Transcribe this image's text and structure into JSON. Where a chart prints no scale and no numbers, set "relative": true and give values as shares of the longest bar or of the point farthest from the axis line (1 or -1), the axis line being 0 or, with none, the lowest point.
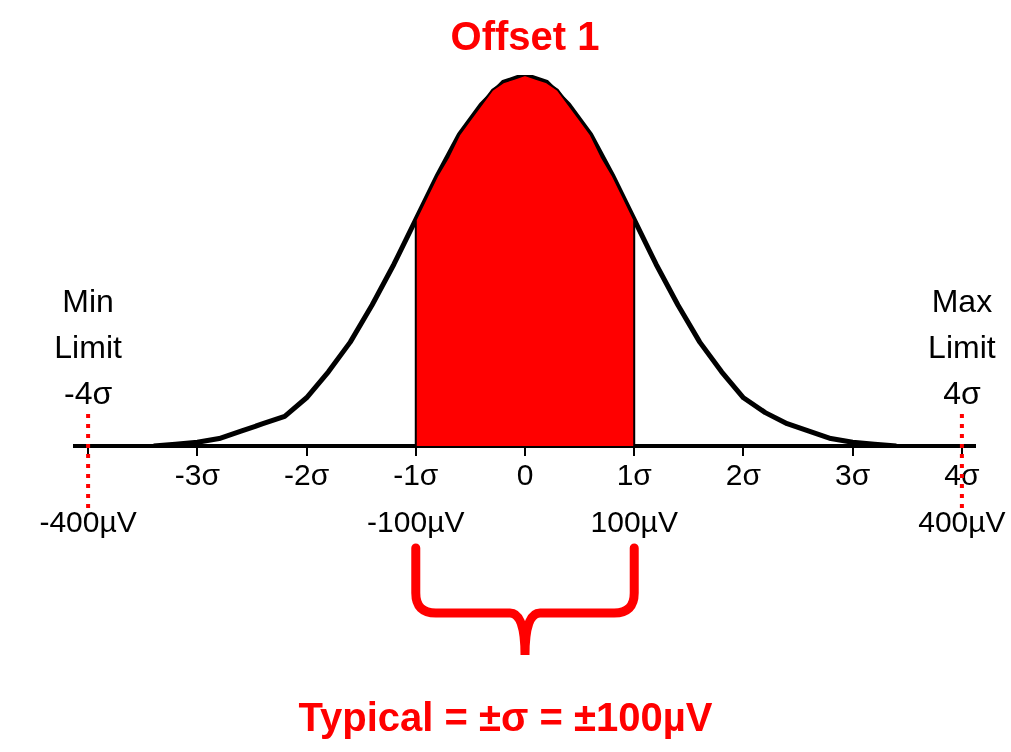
{
  "chart_data": {
    "type": "line",
    "title": "Offset 1",
    "relative": true,
    "grid": false,
    "legend": false,
    "xlim": [
      -4.12,
      4.12
    ],
    "xticks": [
      {
        "value": -4,
        "label": null
      },
      {
        "value": -3,
        "label": "-3σ"
      },
      {
        "value": -2,
        "label": "-2σ"
      },
      {
        "value": -1,
        "label": "-1σ"
      },
      0,
      {
        "value": 1,
        "label": "1σ"
      },
      {
        "value": 2,
        "label": "2σ"
      },
      {
        "value": 3,
        "label": "3σ"
      },
      {
        "value": 4,
        "label": "4σ"
      }
    ],
    "x2lim": [
      -412,
      412
    ],
    "x2ticks": [
      {
        "value": -400,
        "label": "-400µV"
      },
      {
        "value": -100,
        "label": "-100µV"
      },
      {
        "value": 100,
        "label": "100µV"
      },
      {
        "value": 400,
        "label": "400µV"
      }
    ],
    "series": [
      {
        "type": "area",
        "color": "#ff0000",
        "x": [
          -1,
          -1,
          -0.9,
          -0.8,
          -0.7,
          -0.6,
          -0.5,
          -0.4,
          -0.3,
          -0.2,
          -0.1,
          0,
          0.1,
          0.2,
          0.3,
          0.4,
          0.5,
          0.6,
          0.7,
          0.8,
          0.9,
          1,
          1
        ],
        "values": [
          0,
          0.61,
          0.67,
          0.73,
          0.78,
          0.84,
          0.88,
          0.92,
          0.96,
          0.98,
          0.99,
          1,
          0.99,
          0.98,
          0.96,
          0.92,
          0.88,
          0.84,
          0.78,
          0.73,
          0.67,
          0.61,
          0
        ]
      },
      {
        "color": "#000000",
        "x": [
          -3.4,
          -3.2,
          -3.0,
          -2.8,
          -2.6,
          -2.4,
          -2.2,
          -2.0,
          -1.8,
          -1.6,
          -1.4,
          -1.2,
          -1.0,
          -0.8,
          -0.6,
          -0.4,
          -0.2,
          0,
          0.2,
          0.4,
          0.6,
          0.8,
          1.0,
          1.2,
          1.4,
          1.6,
          1.8,
          2.0,
          2.2,
          2.4,
          2.6,
          2.8,
          3.0,
          3.2,
          3.4
        ],
        "values": [
          0,
          0.005,
          0.01,
          0.02,
          0.04,
          0.06,
          0.08,
          0.13,
          0.2,
          0.28,
          0.38,
          0.49,
          0.61,
          0.73,
          0.84,
          0.92,
          0.98,
          1,
          0.98,
          0.92,
          0.84,
          0.73,
          0.61,
          0.49,
          0.38,
          0.28,
          0.2,
          0.13,
          0.09,
          0.06,
          0.04,
          0.02,
          0.01,
          0.005,
          0
        ]
      }
    ],
    "ref_lines": [
      {
        "axis": "x",
        "value": -4,
        "label": "Min Limit -4σ",
        "color": "#ff0000",
        "line_style": "dotted"
      },
      {
        "axis": "x",
        "value": 4,
        "label": "Max Limit 4σ",
        "color": "#ff0000",
        "line_style": "dotted"
      }
    ],
    "annotations": [
      "Typical = ±σ = ±100µV"
    ]
  }
}
